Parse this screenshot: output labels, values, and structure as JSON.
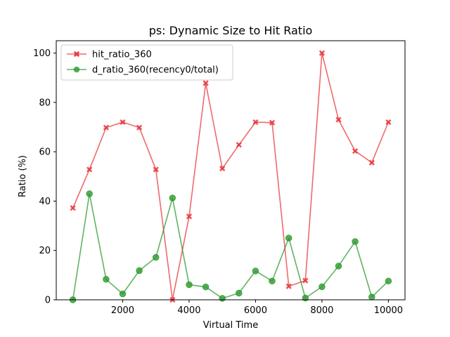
{
  "chart_data": {
    "type": "line",
    "title": "ps: Dynamic Size to Hit Ratio",
    "xlabel": "Virtual Time",
    "ylabel": "Ratio (%)",
    "xlim": [
      0,
      10500
    ],
    "ylim": [
      0,
      105
    ],
    "xticks": [
      2000,
      4000,
      6000,
      8000,
      10000
    ],
    "yticks": [
      0,
      20,
      40,
      60,
      80,
      100
    ],
    "grid": false,
    "legend_position": "top-left",
    "x": [
      500,
      1000,
      1500,
      2000,
      2500,
      3000,
      3500,
      4000,
      4500,
      5000,
      5500,
      6000,
      6500,
      7000,
      7500,
      8000,
      8500,
      9000,
      9500,
      10000
    ],
    "series": [
      {
        "name": "hit_ratio_360",
        "color": "#e8383b",
        "marker": "x",
        "values": [
          37.2,
          52.8,
          69.8,
          72.0,
          69.8,
          52.8,
          0.0,
          33.8,
          87.8,
          53.2,
          62.8,
          72.0,
          71.8,
          5.5,
          7.8,
          100.0,
          73.0,
          60.3,
          55.6,
          72.0
        ]
      },
      {
        "name": "d_ratio_360(recency0/total)",
        "color": "#2e9a2e",
        "marker": "o",
        "values": [
          0.0,
          43.0,
          8.3,
          2.4,
          11.8,
          17.2,
          41.3,
          6.1,
          5.2,
          0.6,
          2.7,
          11.7,
          7.6,
          25.0,
          0.7,
          5.3,
          13.7,
          23.6,
          1.1,
          7.6
        ]
      }
    ]
  }
}
